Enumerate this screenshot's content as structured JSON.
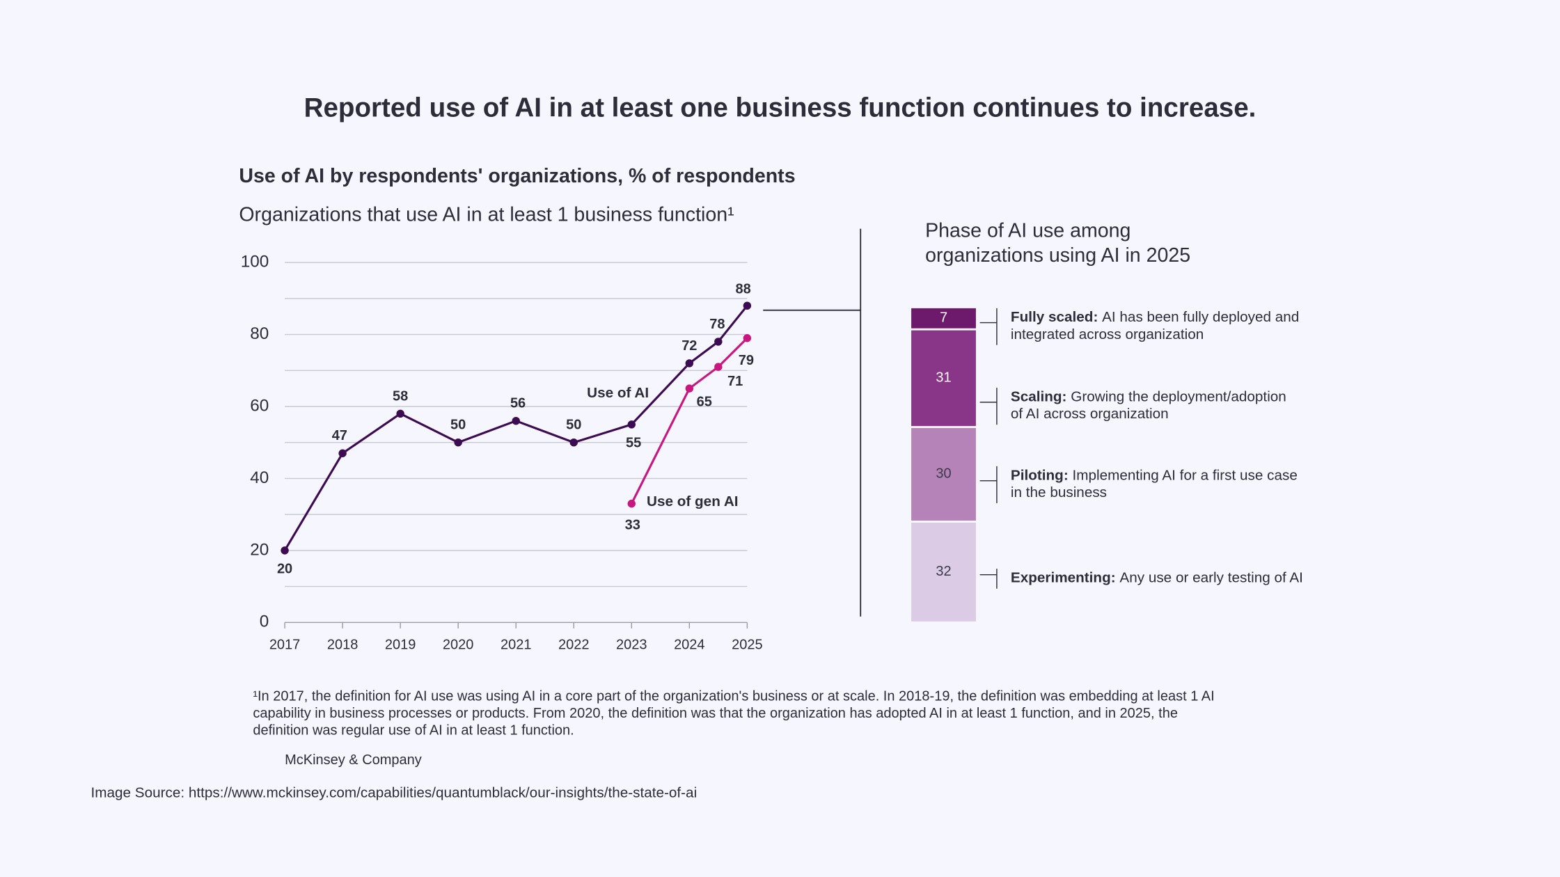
{
  "title": "Reported use of AI in at least one business function continues to increase.",
  "chart_data": [
    {
      "type": "line",
      "title": "Use of AI by respondents' organizations, % of respondents",
      "subtitle": "Organizations that use AI in at least 1 business function¹",
      "x": [
        2017,
        2018,
        2019,
        2020,
        2021,
        2022,
        2023,
        2024,
        2024.5,
        2025
      ],
      "xlim": [
        2017,
        2025
      ],
      "xticks": [
        2017,
        2018,
        2019,
        2020,
        2021,
        2022,
        2023,
        2024,
        2025
      ],
      "ylim": [
        0,
        100
      ],
      "yticks": [
        0,
        20,
        40,
        60,
        80,
        100
      ],
      "minor_yticks": [
        10,
        30,
        50,
        70,
        90
      ],
      "grid": true,
      "series": [
        {
          "name": "Use of AI",
          "color": "#3d0b52",
          "values": [
            20,
            47,
            58,
            50,
            56,
            50,
            55,
            72,
            78,
            88
          ]
        },
        {
          "name": "Use of gen AI",
          "color": "#c8177f",
          "values": [
            null,
            null,
            null,
            null,
            null,
            null,
            33,
            65,
            71,
            79
          ]
        }
      ]
    },
    {
      "type": "stacked_bar",
      "title": [
        "Phase of AI use among",
        "organizations using AI in 2025"
      ],
      "series": [
        {
          "name": "Experimenting:",
          "description": [
            "Any use or early testing of AI"
          ],
          "color": "#dccbe4",
          "values": [
            32
          ]
        },
        {
          "name": "Piloting:",
          "description": [
            "Implementing AI for a first use case",
            "in the business"
          ],
          "color": "#b583b8",
          "values": [
            30
          ]
        },
        {
          "name": "Scaling:",
          "description": [
            "Growing the deployment/adoption",
            "of AI across organization"
          ],
          "color": "#8a3688",
          "values": [
            31
          ]
        },
        {
          "name": "Fully scaled:",
          "description": [
            "AI has been fully deployed and",
            "integrated across organization"
          ],
          "color": "#6d1a6d",
          "values": [
            7
          ]
        }
      ]
    }
  ],
  "footnote": [
    "¹In 2017, the definition for AI use was using AI in a core part of the organization's business or at scale. In 2018-19, the definition was embedding at least 1 AI",
    "capability in business processes or products. From 2020, the definition was that the organization has adopted AI in at least 1 function, and in 2025, the",
    "definition was regular use of AI in at least 1 function."
  ],
  "source": "McKinsey & Company",
  "image_source": "Image Source: https://www.mckinsey.com/capabilities/quantumblack/our-insights/the-state-of-ai"
}
